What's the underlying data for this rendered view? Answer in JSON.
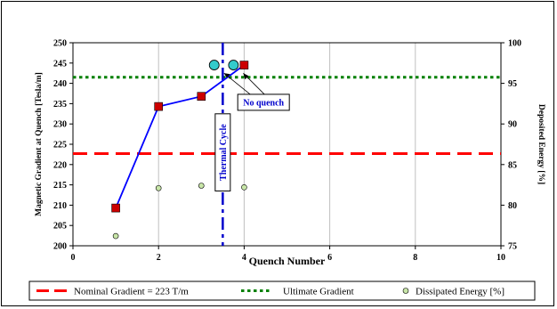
{
  "chart_data": {
    "type": "scatter",
    "xlabel": "Quench Number",
    "ylabel": "Magnetic Gradient at Quench [Tesla/m]",
    "y2label": "Deposited Energy [%]",
    "xlim": [
      0,
      10
    ],
    "ylim": [
      200,
      250
    ],
    "y2lim": [
      75,
      100
    ],
    "x_ticks": [
      0,
      2,
      4,
      6,
      8,
      10
    ],
    "y_ticks": [
      200,
      205,
      210,
      215,
      220,
      225,
      230,
      235,
      240,
      245,
      250
    ],
    "y2_ticks": [
      75,
      80,
      85,
      90,
      95,
      100
    ],
    "grid": "vertical",
    "legend_position": "bottom",
    "reference_lines": [
      {
        "name": "Nominal Gradient = 223 T/m",
        "y": 222.7,
        "color": "#ff0000",
        "style": "dashed"
      },
      {
        "name": "Ultimate Gradient",
        "y": 241.5,
        "color": "#008000",
        "style": "dotted"
      }
    ],
    "quench_series": {
      "x": [
        1,
        2,
        3,
        4
      ],
      "y": [
        209.3,
        234.3,
        236.8,
        244.5
      ],
      "color": "#cc0000",
      "line_color": "#0000ff"
    },
    "no_quench_points": {
      "x": [
        3.3,
        3.75
      ],
      "y": [
        244.5,
        244.5
      ],
      "color": "#33cccc"
    },
    "energy_series": {
      "name": "Dissipated Energy [%]",
      "x": [
        1,
        2,
        3,
        4
      ],
      "y": [
        76.2,
        82.1,
        82.4,
        82.2
      ],
      "color": "#c8e6a8"
    },
    "thermal_cycle": {
      "x": 3.5,
      "label": "Thermal Cycle",
      "color": "#0000cc"
    },
    "annotation": {
      "text": "No quench",
      "color": "#0000cc",
      "box_x": 3.85,
      "box_y": 237.3
    }
  }
}
